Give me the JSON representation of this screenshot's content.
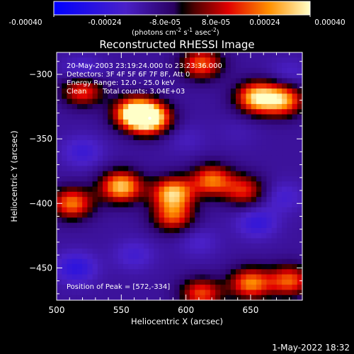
{
  "colorbar": {
    "tick_labels": [
      "-0.00040",
      "-0.00024",
      "-8.0e-05",
      "8.0e-05",
      "0.00024",
      "0.00040"
    ],
    "unit_main": "(photons cm",
    "unit_exp1": "-2",
    "unit_mid1": " s",
    "unit_exp2": "-1",
    "unit_mid2": " asec",
    "unit_exp3": "-2",
    "unit_close": ")"
  },
  "chart_data": {
    "type": "heatmap",
    "title": "Reconstructed RHESSI Image",
    "xlabel": "Heliocentric X (arcsec)",
    "ylabel": "Heliocentric Y (arcsec)",
    "xlim": [
      500,
      690
    ],
    "ylim": [
      -475,
      -283
    ],
    "x_ticks": [
      500,
      550,
      600,
      650
    ],
    "y_ticks": [
      -300,
      -350,
      -400,
      -450
    ],
    "colorbar_range": [
      -0.0004,
      0.0004
    ],
    "annotations": [
      "20-May-2003 23:19:24.000 to 23:23:36.000",
      "Detectors: 3F 4F 5F 6F 7F 8F, Att 0",
      "Energy Range: 12.0 - 25.0 keV",
      "Clean",
      "Total counts: 3.04E+03"
    ],
    "peak_label": "Position of Peak = [572,-334]",
    "peak": [
      572,
      -334
    ],
    "features": [
      {
        "x": 572,
        "y": -334,
        "value": 0.0004
      },
      {
        "x": 560,
        "y": -330,
        "value": 0.00036
      },
      {
        "x": 655,
        "y": -318,
        "value": 0.00034
      },
      {
        "x": 675,
        "y": -320,
        "value": 0.00028
      },
      {
        "x": 520,
        "y": -312,
        "value": 0.00022
      },
      {
        "x": 612,
        "y": -292,
        "value": 0.00022
      },
      {
        "x": 550,
        "y": -387,
        "value": 0.00034
      },
      {
        "x": 590,
        "y": -392,
        "value": 0.00033
      },
      {
        "x": 620,
        "y": -382,
        "value": 0.00024
      },
      {
        "x": 512,
        "y": -400,
        "value": 0.00025
      },
      {
        "x": 645,
        "y": -390,
        "value": 0.00016
      },
      {
        "x": 590,
        "y": -410,
        "value": 0.0002
      },
      {
        "x": 650,
        "y": -462,
        "value": 0.00026
      },
      {
        "x": 612,
        "y": -470,
        "value": 0.0002
      },
      {
        "x": 680,
        "y": -460,
        "value": 0.00022
      },
      {
        "x": 675,
        "y": -395,
        "value": -0.0002
      },
      {
        "x": 655,
        "y": -415,
        "value": -0.00024
      },
      {
        "x": 520,
        "y": -300,
        "value": -0.00024
      },
      {
        "x": 520,
        "y": -360,
        "value": -0.00022
      },
      {
        "x": 515,
        "y": -450,
        "value": -0.00026
      },
      {
        "x": 560,
        "y": -440,
        "value": -0.0002
      },
      {
        "x": 610,
        "y": -430,
        "value": -0.00018
      },
      {
        "x": 600,
        "y": -350,
        "value": -0.00016
      },
      {
        "x": 640,
        "y": -345,
        "value": -0.00014
      },
      {
        "x": 680,
        "y": -300,
        "value": -0.00018
      }
    ],
    "grid": false
  },
  "footer": {
    "date": "1-May-2022 18:32"
  }
}
